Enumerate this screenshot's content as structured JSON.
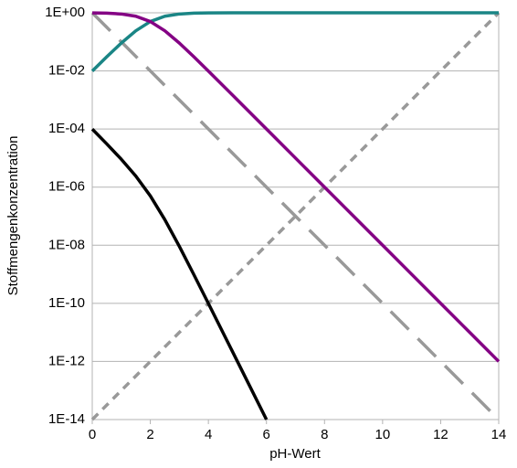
{
  "chart_data": {
    "type": "line",
    "x_label": "pH-Wert",
    "y_label": "Stoffmengenkonzentration",
    "x": [
      0,
      0.5,
      1,
      1.5,
      2,
      2.5,
      3,
      3.5,
      4,
      5,
      6,
      7,
      8,
      9,
      10,
      11,
      12,
      13,
      14
    ],
    "series": [
      {
        "color": "#999999",
        "style": "dashed",
        "values": [
          1,
          0.316,
          0.1,
          0.0316,
          0.01,
          0.00316,
          0.001,
          0.000316,
          0.0001,
          1e-05,
          1e-06,
          1e-07,
          1e-08,
          1e-09,
          1e-10,
          1e-11,
          1e-12,
          1e-13,
          1e-14
        ]
      },
      {
        "color": "#999999",
        "style": "dotted",
        "values": [
          1e-14,
          3.16e-14,
          1e-13,
          3.16e-13,
          1e-12,
          3.16e-12,
          1e-11,
          3.16e-11,
          1e-10,
          1e-09,
          1e-08,
          1e-07,
          1e-06,
          1e-05,
          0.0001,
          0.001,
          0.01,
          0.1,
          1
        ]
      },
      {
        "color": "#1a8585",
        "style": "solid",
        "values": [
          0.0099,
          0.0307,
          0.0909,
          0.24,
          0.5,
          0.76,
          0.909,
          0.969,
          0.99,
          0.999,
          1,
          1,
          1,
          1,
          1,
          1,
          1,
          1,
          1
        ]
      },
      {
        "color": "#840084",
        "style": "solid",
        "values": [
          0.99,
          0.969,
          0.909,
          0.76,
          0.5,
          0.24,
          0.0909,
          0.0307,
          0.0099,
          0.001,
          0.0001,
          1e-05,
          1e-06,
          1e-07,
          1e-08,
          1e-09,
          1e-10,
          1e-11,
          1e-12
        ]
      },
      {
        "color": "#000000",
        "style": "solid",
        "values": [
          9.9e-05,
          3.07e-05,
          9.1e-06,
          2.4e-06,
          5e-07,
          7.6e-08,
          9.1e-09,
          9.7e-10,
          9.9e-11,
          1e-12,
          1e-14,
          null,
          null,
          null,
          null,
          null,
          null,
          null,
          null
        ]
      }
    ],
    "xlim": [
      0,
      14
    ],
    "xticks": [
      0,
      2,
      4,
      6,
      8,
      10,
      12,
      14
    ],
    "ylim": [
      1e-14,
      1
    ],
    "log_y": true,
    "yticks": [
      {
        "value": 1e-14,
        "label": "1E-14"
      },
      {
        "value": 1e-12,
        "label": "1E-12"
      },
      {
        "value": 1e-10,
        "label": "1E-10"
      },
      {
        "value": 1e-08,
        "label": "1E-08"
      },
      {
        "value": 1e-06,
        "label": "1E-06"
      },
      {
        "value": 0.0001,
        "label": "1E-04"
      },
      {
        "value": 0.01,
        "label": "1E-02"
      },
      {
        "value": 1,
        "label": "1E+00"
      }
    ],
    "grid": true
  }
}
